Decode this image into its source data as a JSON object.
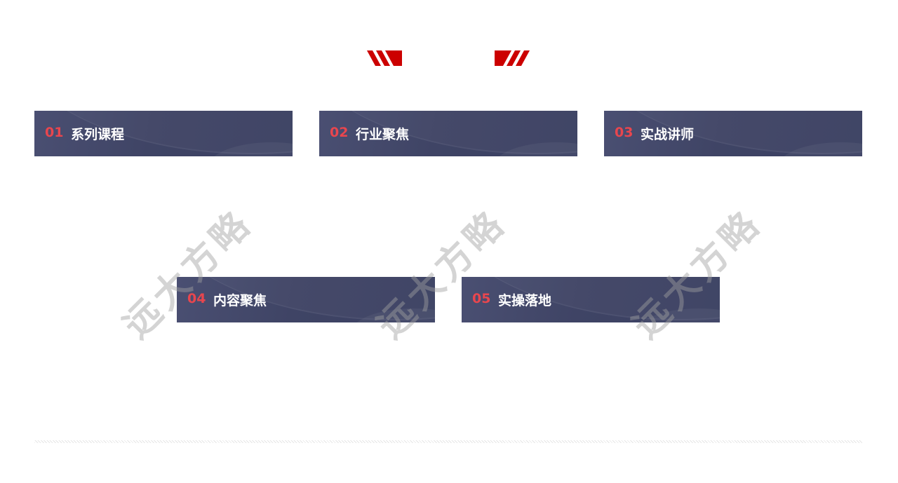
{
  "header": {
    "decoration_color": "#cc0000"
  },
  "cards": [
    {
      "number": "01",
      "label": "系列课程"
    },
    {
      "number": "02",
      "label": "行业聚焦"
    },
    {
      "number": "03",
      "label": "实战讲师"
    },
    {
      "number": "04",
      "label": "内容聚焦"
    },
    {
      "number": "05",
      "label": "实操落地"
    }
  ],
  "watermark": {
    "text": "远大方略"
  },
  "colors": {
    "card_bg": "#3e4365",
    "number": "#e8464e",
    "label": "#ffffff"
  }
}
